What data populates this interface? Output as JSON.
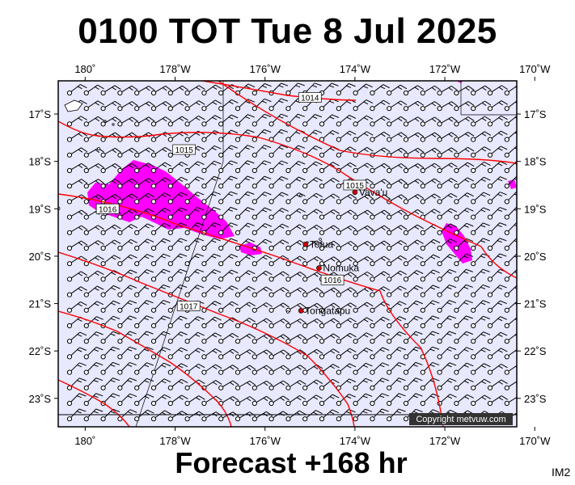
{
  "title": "0100 TOT Tue 8 Jul 2025",
  "footer": "Forecast +168 hr",
  "im_code": "IM2",
  "copyright": "Copyright metvuw.com",
  "map": {
    "lon_range": [
      180.6,
      170.4
    ],
    "lat_range": [
      -16.3,
      -23.6
    ],
    "lon_ticks": [
      {
        "value": 180,
        "label": "180˚"
      },
      {
        "value": 178,
        "label": "178˚W"
      },
      {
        "value": 176,
        "label": "176˚W"
      },
      {
        "value": 174,
        "label": "174˚W"
      },
      {
        "value": 172,
        "label": "172˚W"
      },
      {
        "value": 170,
        "label": "170˚W"
      }
    ],
    "lat_ticks": [
      {
        "value": -17,
        "label": "17˚S"
      },
      {
        "value": -18,
        "label": "18˚S"
      },
      {
        "value": -19,
        "label": "19˚S"
      },
      {
        "value": -20,
        "label": "20˚S"
      },
      {
        "value": -21,
        "label": "21˚S"
      },
      {
        "value": -22,
        "label": "22˚S"
      },
      {
        "value": -23,
        "label": "23˚S"
      }
    ],
    "places": [
      {
        "name": "Vava'u",
        "lon": 174.0,
        "lat": -18.65
      },
      {
        "name": "Tofua",
        "lon": 175.1,
        "lat": -19.75
      },
      {
        "name": "Nomuka",
        "lon": 174.8,
        "lat": -20.25
      },
      {
        "name": "Tongatapu",
        "lon": 175.2,
        "lat": -21.15
      }
    ],
    "isobars": [
      {
        "label": "1014",
        "lon": 175.0,
        "lat": -16.65
      },
      {
        "label": "1015",
        "lon": 177.8,
        "lat": -17.75
      },
      {
        "label": "1015",
        "lon": 174.0,
        "lat": -18.5
      },
      {
        "label": "1016",
        "lon": 179.5,
        "lat": -19.0
      },
      {
        "label": "1016",
        "lon": 174.5,
        "lat": -20.5
      },
      {
        "label": "1017",
        "lon": 177.7,
        "lat": -21.05
      }
    ],
    "colors": {
      "ocean": "#e8e8ff",
      "rain": "#ff00ff",
      "isobar": "#ff0000",
      "place_dot": "#cc0000"
    }
  }
}
